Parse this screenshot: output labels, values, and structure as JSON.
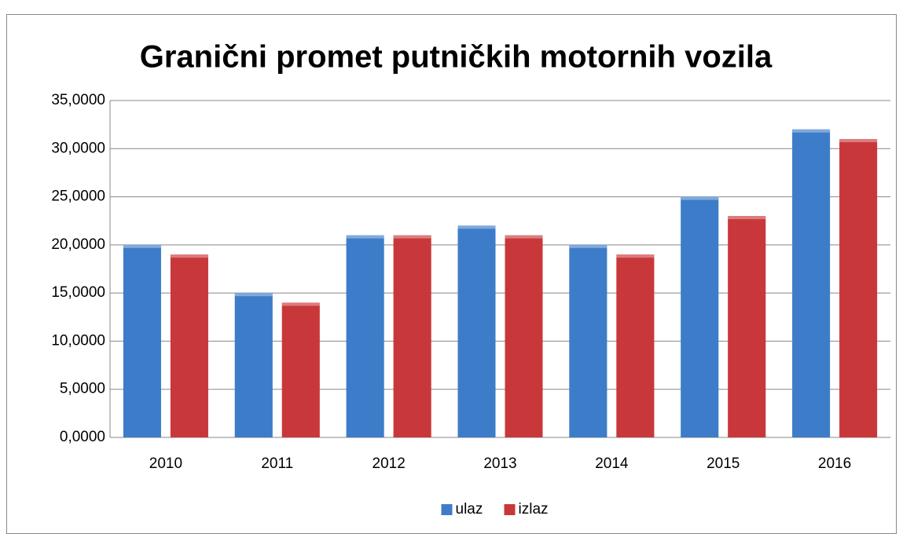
{
  "chart_data": {
    "type": "bar",
    "title": "Granični promet putničkih motornih vozila",
    "categories": [
      "2010",
      "2011",
      "2012",
      "2013",
      "2014",
      "2015",
      "2016"
    ],
    "series": [
      {
        "name": "ulaz",
        "color": "#3d7cc9",
        "values": [
          20,
          15,
          21,
          22,
          20,
          25,
          32
        ]
      },
      {
        "name": "izlaz",
        "color": "#c8383a",
        "values": [
          19,
          14,
          21,
          21,
          19,
          23,
          31
        ]
      }
    ],
    "ylim": [
      0,
      35
    ],
    "yticks": [
      {
        "value": 0,
        "label": "0,0000"
      },
      {
        "value": 5,
        "label": "5,0000"
      },
      {
        "value": 10,
        "label": "10,0000"
      },
      {
        "value": 15,
        "label": "15,0000"
      },
      {
        "value": 20,
        "label": "20,0000"
      },
      {
        "value": 25,
        "label": "25,0000"
      },
      {
        "value": 30,
        "label": "30,0000"
      },
      {
        "value": 35,
        "label": "35,0000"
      }
    ],
    "grid": true,
    "legend": "bottom"
  }
}
